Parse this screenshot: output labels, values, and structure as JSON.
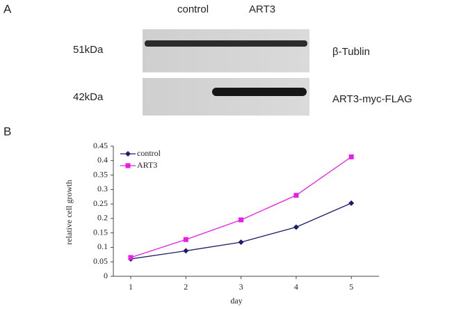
{
  "panel_a": {
    "label": "A",
    "lanes": [
      "control",
      "ART3"
    ],
    "blots": [
      {
        "size": "51kDa",
        "protein": "β-Tublin"
      },
      {
        "size": "42kDa",
        "protein": "ART3-myc-FLAG"
      }
    ]
  },
  "chart_data": {
    "type": "line",
    "panel_label": "B",
    "x_label": "day",
    "y_label": "relative cell growth",
    "categories": [
      "1",
      "2",
      "3",
      "4",
      "5"
    ],
    "series": [
      {
        "name": "control",
        "color": "#1c1c6b",
        "marker": "diamond",
        "values": [
          0.06,
          0.088,
          0.118,
          0.17,
          0.253
        ]
      },
      {
        "name": "ART3",
        "color": "#e61ee6",
        "marker": "square",
        "values": [
          0.065,
          0.127,
          0.195,
          0.28,
          0.413
        ]
      }
    ],
    "ylim": [
      0,
      0.45
    ],
    "yticks": [
      0,
      0.05,
      0.1,
      0.15,
      0.2,
      0.25,
      0.3,
      0.35,
      0.4,
      0.45
    ],
    "legend": "upper left"
  }
}
